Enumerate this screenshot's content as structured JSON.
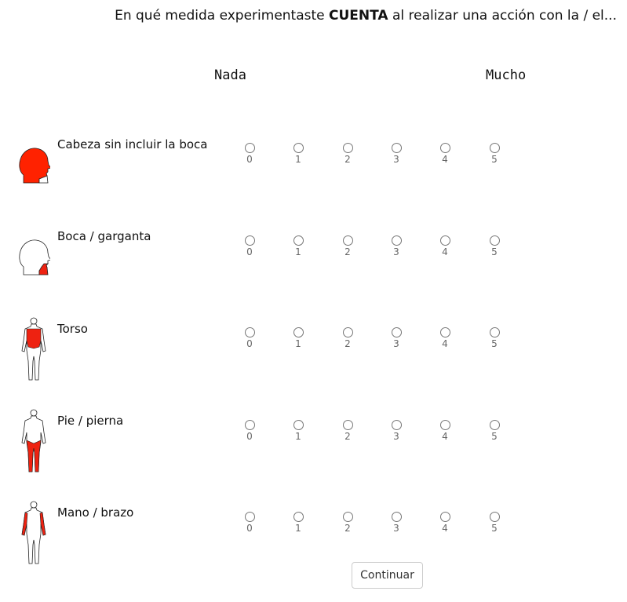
{
  "question": {
    "prefix": "En qué medida experimentaste ",
    "emphasis": "CUENTA",
    "suffix": " al realizar una acción con la / el..."
  },
  "scale": {
    "min_label": "Nada",
    "max_label": "Mucho"
  },
  "options": [
    "0",
    "1",
    "2",
    "3",
    "4",
    "5"
  ],
  "rows": [
    {
      "label": "Cabeza sin incluir la boca",
      "icon": "head-icon"
    },
    {
      "label": "Boca / garganta",
      "icon": "mouth-throat-icon"
    },
    {
      "label": "Torso",
      "icon": "torso-icon"
    },
    {
      "label": "Pie / pierna",
      "icon": "leg-icon"
    },
    {
      "label": "Mano / brazo",
      "icon": "arm-icon"
    }
  ],
  "colors": {
    "highlight": "#ee2211",
    "radio_border": "#777777"
  },
  "continue_label": "Continuar"
}
